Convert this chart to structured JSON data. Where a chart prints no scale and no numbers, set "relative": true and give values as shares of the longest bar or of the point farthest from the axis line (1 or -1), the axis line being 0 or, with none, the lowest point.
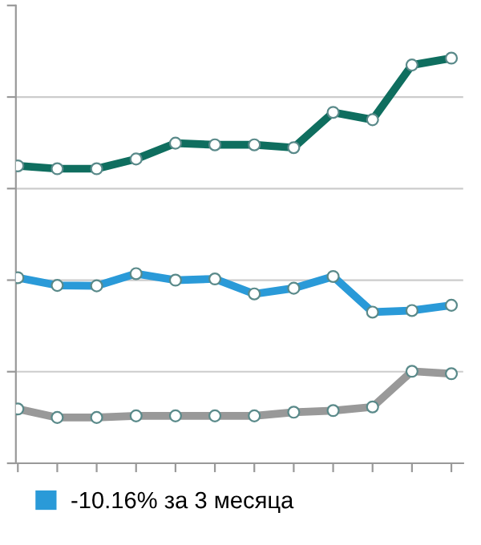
{
  "chart_data": {
    "type": "line",
    "relative": true,
    "categories": [
      null,
      null,
      null,
      null,
      null,
      null,
      null,
      null,
      null,
      null,
      null,
      null
    ],
    "series": [
      {
        "color": "#0f6e5f",
        "values": [
          0.734,
          0.727,
          0.727,
          0.751,
          0.79,
          0.786,
          0.786,
          0.779,
          0.866,
          0.848,
          0.983,
          1
        ]
      },
      {
        "name": "-10.16% за 3 месяца",
        "color": "#2a9ad8",
        "values": [
          0.458,
          0.439,
          0.438,
          0.468,
          0.452,
          0.455,
          0.418,
          0.432,
          0.461,
          0.373,
          0.377,
          0.39
        ]
      },
      {
        "color": "#999999",
        "values": [
          0.134,
          0.113,
          0.113,
          0.117,
          0.117,
          0.117,
          0.117,
          0.126,
          0.13,
          0.139,
          0.227,
          0.221
        ]
      }
    ],
    "marker": "circle",
    "grid": "y",
    "legend": "bottom",
    "tick_labels": false
  }
}
